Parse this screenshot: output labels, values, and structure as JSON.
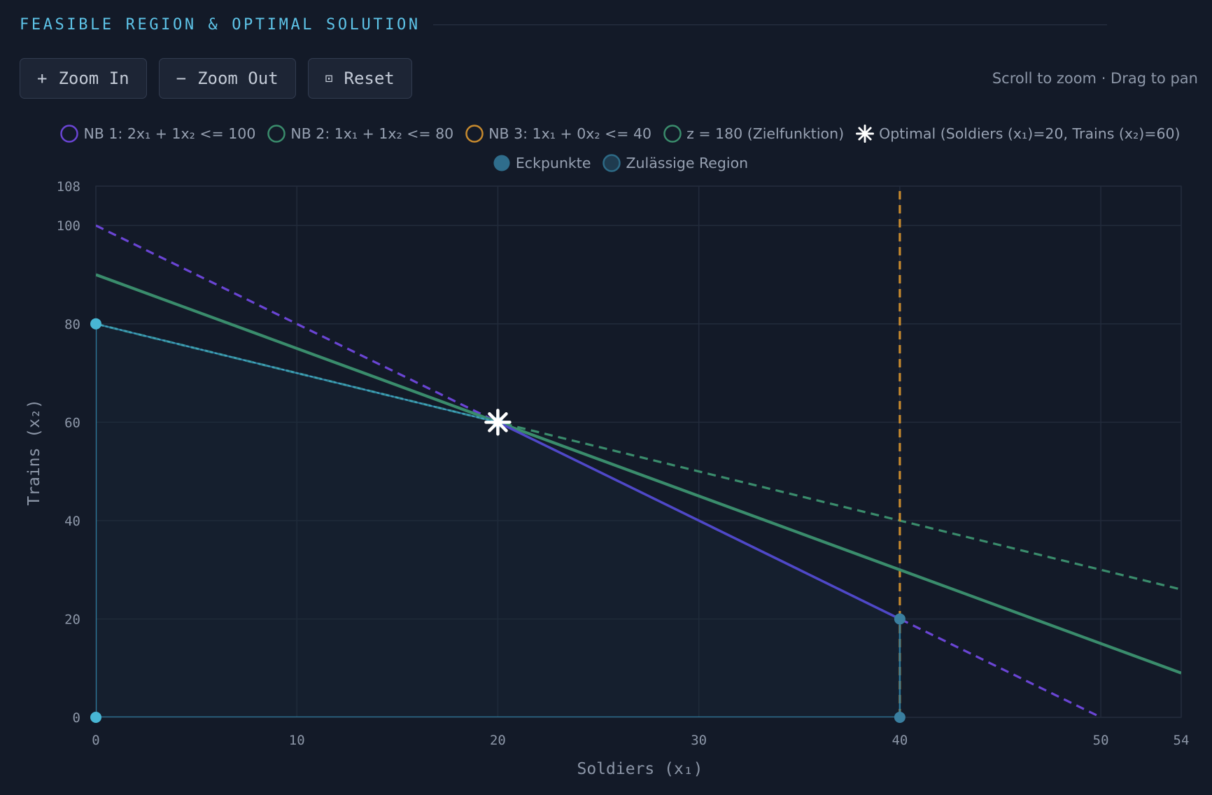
{
  "title": "FEASIBLE REGION & OPTIMAL SOLUTION",
  "toolbar": {
    "zoom_in": {
      "icon": "plus-icon",
      "glyph": "+",
      "label": "Zoom In"
    },
    "zoom_out": {
      "icon": "minus-icon",
      "glyph": "−",
      "label": "Zoom Out"
    },
    "reset": {
      "icon": "reset-icon",
      "glyph": "⊡",
      "label": "Reset"
    }
  },
  "hint": "Scroll to zoom · Drag to pan",
  "legend": [
    {
      "label": "NB 1: 2x₁ + 1x₂ <= 100",
      "color": "#6a45d4",
      "marker": "ring"
    },
    {
      "label": "NB 2: 1x₁ + 1x₂ <= 80",
      "color": "#3a8c6c",
      "marker": "ring"
    },
    {
      "label": "NB 3: 1x₁ + 0x₂ <= 40",
      "color": "#c78a2e",
      "marker": "ring"
    },
    {
      "label": "z = 180 (Zielfunktion)",
      "color": "#3a8c6c",
      "marker": "ring"
    },
    {
      "label": "Optimal (Soldiers (x₁)=20, Trains (x₂)=60)",
      "color": "#ffffff",
      "marker": "star"
    },
    {
      "label": "Eckpunkte",
      "color": "#2f6d8c",
      "marker": "dot"
    },
    {
      "label": "Zulässige Region",
      "color": "#2d6a86",
      "marker": "region"
    }
  ],
  "chart_data": {
    "type": "line",
    "xlabel": "Soldiers (x₁)",
    "ylabel": "Trains (x₂)",
    "xlim": [
      0,
      54
    ],
    "ylim": [
      0,
      108
    ],
    "xticks": [
      0,
      10,
      20,
      30,
      40,
      50,
      54
    ],
    "yticks": [
      0,
      20,
      40,
      60,
      80,
      100,
      108
    ],
    "grid": true,
    "legend_position": "top",
    "series": [
      {
        "name": "NB 1: 2x₁ + 1x₂ <= 100",
        "color": "#6a45d4",
        "dashed": true,
        "x": [
          0,
          50
        ],
        "y": [
          100,
          0
        ]
      },
      {
        "name": "NB 2: 1x₁ + 1x₂ <= 80",
        "color": "#3a8c6c",
        "dashed": true,
        "x": [
          0,
          54
        ],
        "y": [
          80,
          26
        ]
      },
      {
        "name": "NB 3: 1x₁ + 0x₂ <= 40",
        "color": "#c78a2e",
        "dashed": true,
        "x": [
          40,
          40
        ],
        "y": [
          0,
          108
        ]
      },
      {
        "name": "z = 180 (Zielfunktion)",
        "color": "#3a8c6c",
        "dashed": false,
        "x": [
          0,
          54
        ],
        "y": [
          90,
          9
        ]
      }
    ],
    "feasible_region": {
      "name": "Zulässige Region",
      "color": "#2d6a86",
      "x": [
        0,
        40,
        40,
        20,
        0
      ],
      "y": [
        0,
        0,
        20,
        60,
        80
      ]
    },
    "vertices": {
      "name": "Eckpunkte",
      "color": "#2f6d8c",
      "x": [
        0,
        40,
        40,
        20,
        0
      ],
      "y": [
        0,
        0,
        20,
        60,
        80
      ]
    },
    "optimal": {
      "name": "Optimal (Soldiers (x₁)=20, Trains (x₂)=60)",
      "x": 20,
      "y": 60,
      "z": 180
    }
  }
}
